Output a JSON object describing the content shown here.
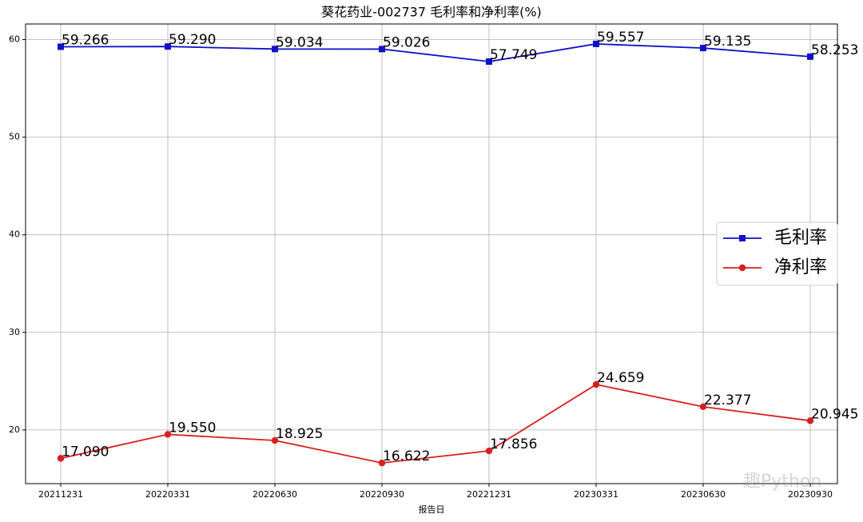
{
  "chart_data": {
    "type": "line",
    "title": "葵花药业-002737 毛利率和净利率(%)",
    "x_label": "报告日",
    "categories": [
      "20211231",
      "20220331",
      "20220630",
      "20220930",
      "20221231",
      "20230331",
      "20230630",
      "20230930"
    ],
    "series": [
      {
        "name": "毛利率",
        "color": "#1010c8",
        "marker": "square",
        "values": [
          59.266,
          59.29,
          59.034,
          59.026,
          57.749,
          59.557,
          59.135,
          58.253
        ],
        "value_labels": [
          "59.266",
          "59.290",
          "59.034",
          "59.026",
          "57.749",
          "59.557",
          "59.135",
          "58.253"
        ]
      },
      {
        "name": "净利率",
        "color": "#d81e1e",
        "marker": "circle",
        "values": [
          17.09,
          19.55,
          18.925,
          16.622,
          17.856,
          24.659,
          22.377,
          20.945
        ],
        "value_labels": [
          "17.090",
          "19.550",
          "18.925",
          "16.622",
          "17.856",
          "24.659",
          "22.377",
          "20.945"
        ]
      }
    ],
    "ylim": [
      14.5,
      61.6
    ],
    "yticks": [
      20,
      30,
      40,
      50,
      60
    ],
    "grid": true,
    "legend": "right",
    "watermark": "趣Python"
  }
}
